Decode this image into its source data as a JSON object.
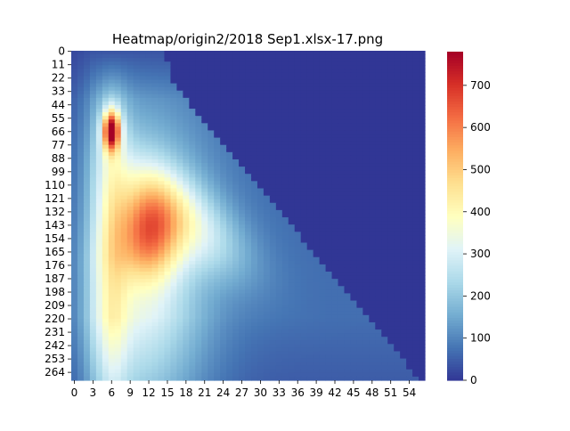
{
  "chart_data": {
    "type": "heatmap",
    "title": "Heatmap/origin2/2018 Sep1.xlsx-17.png",
    "xlabel": "",
    "ylabel": "",
    "x_tick_labels": [
      "0",
      "3",
      "6",
      "9",
      "12",
      "15",
      "18",
      "21",
      "24",
      "27",
      "30",
      "33",
      "36",
      "39",
      "42",
      "45",
      "48",
      "51",
      "54"
    ],
    "y_tick_labels": [
      "0",
      "11",
      "22",
      "33",
      "44",
      "55",
      "66",
      "77",
      "88",
      "99",
      "110",
      "121",
      "132",
      "143",
      "154",
      "165",
      "176",
      "187",
      "198",
      "209",
      "220",
      "231",
      "242",
      "253",
      "264"
    ],
    "n_cols": 57,
    "n_rows": 271,
    "colorbar": {
      "min": 0,
      "max": 780,
      "tick_labels": [
        "0",
        "100",
        "200",
        "300",
        "400",
        "500",
        "600",
        "700"
      ],
      "colormap": "RdYlBu_r"
    },
    "colormap_colors": [
      "#313695",
      "#4575b4",
      "#74add1",
      "#abd9e9",
      "#e0f3f8",
      "#ffffbf",
      "#fee090",
      "#fdae61",
      "#f46d43",
      "#d73027",
      "#a50026"
    ],
    "pattern": {
      "peak_value": 780,
      "peak_at": {
        "x": 6,
        "y": 66
      },
      "secondary_peak": {
        "value": 640,
        "x": 12,
        "y": 150
      },
      "upper_triangle_value": 0
    }
  }
}
